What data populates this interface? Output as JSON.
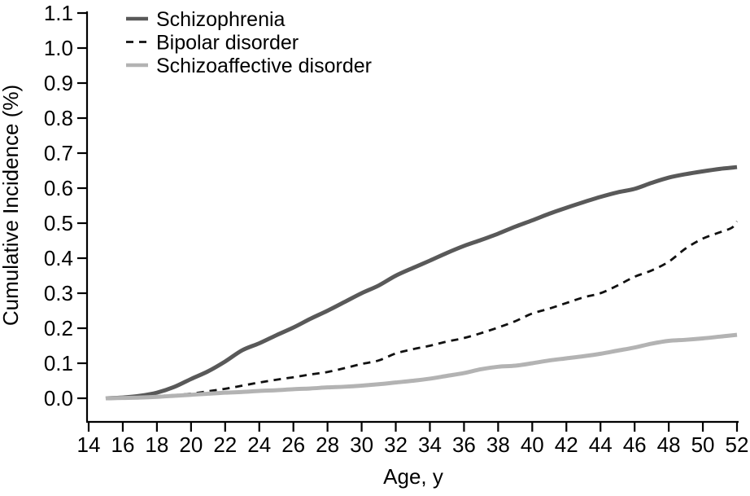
{
  "chart_data": {
    "type": "line",
    "title": "",
    "xlabel": "Age, y",
    "ylabel": "Cumulative Incidence (%)",
    "xlim": [
      14,
      52
    ],
    "ylim": [
      0,
      1.1
    ],
    "xticks": [
      14,
      16,
      18,
      20,
      22,
      24,
      26,
      28,
      30,
      32,
      34,
      36,
      38,
      40,
      42,
      44,
      46,
      48,
      50,
      52
    ],
    "yticks": [
      "0.0",
      "0.1",
      "0.2",
      "0.3",
      "0.4",
      "0.5",
      "0.6",
      "0.7",
      "0.8",
      "0.9",
      "1.0",
      "1.1"
    ],
    "grid": false,
    "legend_position": "top-left-inside",
    "axis_color": "#000000",
    "background_color": "#ffffff",
    "series": [
      {
        "name": "Schizophrenia",
        "color": "#595959",
        "style": "solid",
        "points": [
          [
            15,
            0.0
          ],
          [
            16,
            0.002
          ],
          [
            17,
            0.007
          ],
          [
            18,
            0.016
          ],
          [
            19,
            0.032
          ],
          [
            20,
            0.055
          ],
          [
            21,
            0.077
          ],
          [
            22,
            0.105
          ],
          [
            23,
            0.137
          ],
          [
            24,
            0.157
          ],
          [
            25,
            0.18
          ],
          [
            26,
            0.202
          ],
          [
            27,
            0.227
          ],
          [
            28,
            0.25
          ],
          [
            29,
            0.275
          ],
          [
            30,
            0.3
          ],
          [
            31,
            0.322
          ],
          [
            32,
            0.35
          ],
          [
            33,
            0.372
          ],
          [
            34,
            0.393
          ],
          [
            35,
            0.415
          ],
          [
            36,
            0.435
          ],
          [
            37,
            0.452
          ],
          [
            38,
            0.47
          ],
          [
            39,
            0.49
          ],
          [
            40,
            0.508
          ],
          [
            41,
            0.527
          ],
          [
            42,
            0.544
          ],
          [
            43,
            0.56
          ],
          [
            44,
            0.575
          ],
          [
            45,
            0.588
          ],
          [
            46,
            0.598
          ],
          [
            47,
            0.615
          ],
          [
            48,
            0.63
          ],
          [
            49,
            0.64
          ],
          [
            50,
            0.648
          ],
          [
            51,
            0.655
          ],
          [
            52,
            0.66
          ]
        ]
      },
      {
        "name": "Bipolar disorder",
        "color": "#111111",
        "style": "dashed",
        "points": [
          [
            15,
            0.0
          ],
          [
            16,
            0.001
          ],
          [
            17,
            0.003
          ],
          [
            18,
            0.006
          ],
          [
            19,
            0.009
          ],
          [
            20,
            0.013
          ],
          [
            21,
            0.02
          ],
          [
            22,
            0.027
          ],
          [
            23,
            0.036
          ],
          [
            24,
            0.045
          ],
          [
            25,
            0.053
          ],
          [
            26,
            0.06
          ],
          [
            27,
            0.068
          ],
          [
            28,
            0.075
          ],
          [
            29,
            0.086
          ],
          [
            30,
            0.098
          ],
          [
            31,
            0.108
          ],
          [
            32,
            0.128
          ],
          [
            33,
            0.14
          ],
          [
            34,
            0.15
          ],
          [
            35,
            0.162
          ],
          [
            36,
            0.172
          ],
          [
            37,
            0.186
          ],
          [
            38,
            0.202
          ],
          [
            39,
            0.22
          ],
          [
            40,
            0.242
          ],
          [
            41,
            0.256
          ],
          [
            42,
            0.272
          ],
          [
            43,
            0.288
          ],
          [
            44,
            0.3
          ],
          [
            45,
            0.322
          ],
          [
            46,
            0.347
          ],
          [
            47,
            0.365
          ],
          [
            48,
            0.39
          ],
          [
            49,
            0.428
          ],
          [
            50,
            0.456
          ],
          [
            51,
            0.474
          ],
          [
            51.7,
            0.487
          ],
          [
            52,
            0.505
          ]
        ]
      },
      {
        "name": "Schizoaffective disorder",
        "color": "#b3b3b3",
        "style": "solid",
        "points": [
          [
            15,
            0.0
          ],
          [
            16,
            0.001
          ],
          [
            17,
            0.002
          ],
          [
            18,
            0.004
          ],
          [
            19,
            0.007
          ],
          [
            20,
            0.01
          ],
          [
            21,
            0.013
          ],
          [
            22,
            0.016
          ],
          [
            23,
            0.018
          ],
          [
            24,
            0.021
          ],
          [
            25,
            0.023
          ],
          [
            26,
            0.026
          ],
          [
            27,
            0.028
          ],
          [
            28,
            0.031
          ],
          [
            29,
            0.033
          ],
          [
            30,
            0.036
          ],
          [
            31,
            0.04
          ],
          [
            32,
            0.045
          ],
          [
            33,
            0.05
          ],
          [
            34,
            0.056
          ],
          [
            35,
            0.064
          ],
          [
            36,
            0.072
          ],
          [
            37,
            0.083
          ],
          [
            38,
            0.09
          ],
          [
            39,
            0.093
          ],
          [
            40,
            0.1
          ],
          [
            41,
            0.108
          ],
          [
            42,
            0.114
          ],
          [
            43,
            0.12
          ],
          [
            44,
            0.127
          ],
          [
            45,
            0.136
          ],
          [
            46,
            0.145
          ],
          [
            47,
            0.156
          ],
          [
            48,
            0.164
          ],
          [
            49,
            0.167
          ],
          [
            50,
            0.171
          ],
          [
            51,
            0.176
          ],
          [
            52,
            0.181
          ]
        ]
      }
    ]
  }
}
